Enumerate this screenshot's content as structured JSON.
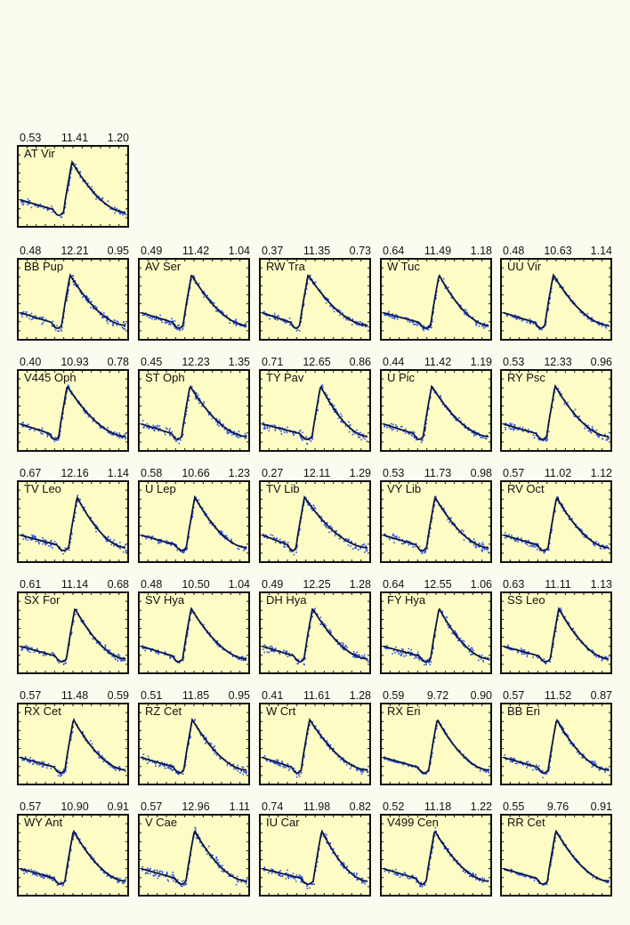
{
  "chart_data": [
    {
      "type": "scatter",
      "name": "AT Vir",
      "values": [
        0.53,
        11.41,
        1.2
      ],
      "labels": [
        "0.53",
        "11.41",
        "1.20"
      ]
    },
    {
      "type": "scatter",
      "name": "BB Pup",
      "values": [
        0.48,
        12.21,
        0.95
      ],
      "labels": [
        "0.48",
        "12.21",
        "0.95"
      ]
    },
    {
      "type": "scatter",
      "name": "AV Ser",
      "values": [
        0.49,
        11.42,
        1.04
      ],
      "labels": [
        "0.49",
        "11.42",
        "1.04"
      ]
    },
    {
      "type": "scatter",
      "name": "RW Tra",
      "values": [
        0.37,
        11.35,
        0.73
      ],
      "labels": [
        "0.37",
        "11.35",
        "0.73"
      ]
    },
    {
      "type": "scatter",
      "name": "W Tuc",
      "values": [
        0.64,
        11.49,
        1.18
      ],
      "labels": [
        "0.64",
        "11.49",
        "1.18"
      ]
    },
    {
      "type": "scatter",
      "name": "UU Vir",
      "values": [
        0.48,
        10.63,
        1.14
      ],
      "labels": [
        "0.48",
        "10.63",
        "1.14"
      ]
    },
    {
      "type": "scatter",
      "name": "V445 Oph",
      "values": [
        0.4,
        10.93,
        0.78
      ],
      "labels": [
        "0.40",
        "10.93",
        "0.78"
      ]
    },
    {
      "type": "scatter",
      "name": "ST Oph",
      "values": [
        0.45,
        12.23,
        1.35
      ],
      "labels": [
        "0.45",
        "12.23",
        "1.35"
      ]
    },
    {
      "type": "scatter",
      "name": "TY Pav",
      "values": [
        0.71,
        12.65,
        0.86
      ],
      "labels": [
        "0.71",
        "12.65",
        "0.86"
      ]
    },
    {
      "type": "scatter",
      "name": "U Pic",
      "values": [
        0.44,
        11.42,
        1.19
      ],
      "labels": [
        "0.44",
        "11.42",
        "1.19"
      ]
    },
    {
      "type": "scatter",
      "name": "RY Psc",
      "values": [
        0.53,
        12.33,
        0.96
      ],
      "labels": [
        "0.53",
        "12.33",
        "0.96"
      ]
    },
    {
      "type": "scatter",
      "name": "TV Leo",
      "values": [
        0.67,
        12.16,
        1.14
      ],
      "labels": [
        "0.67",
        "12.16",
        "1.14"
      ]
    },
    {
      "type": "scatter",
      "name": "U Lep",
      "values": [
        0.58,
        10.66,
        1.23
      ],
      "labels": [
        "0.58",
        "10.66",
        "1.23"
      ]
    },
    {
      "type": "scatter",
      "name": "TV Lib",
      "values": [
        0.27,
        12.11,
        1.29
      ],
      "labels": [
        "0.27",
        "12.11",
        "1.29"
      ]
    },
    {
      "type": "scatter",
      "name": "VY Lib",
      "values": [
        0.53,
        11.73,
        0.98
      ],
      "labels": [
        "0.53",
        "11.73",
        "0.98"
      ]
    },
    {
      "type": "scatter",
      "name": "RV Oct",
      "values": [
        0.57,
        11.02,
        1.12
      ],
      "labels": [
        "0.57",
        "11.02",
        "1.12"
      ]
    },
    {
      "type": "scatter",
      "name": "SX For",
      "values": [
        0.61,
        11.14,
        0.68
      ],
      "labels": [
        "0.61",
        "11.14",
        "0.68"
      ]
    },
    {
      "type": "scatter",
      "name": "SV Hya",
      "values": [
        0.48,
        10.5,
        1.04
      ],
      "labels": [
        "0.48",
        "10.50",
        "1.04"
      ]
    },
    {
      "type": "scatter",
      "name": "DH Hya",
      "values": [
        0.49,
        12.25,
        1.28
      ],
      "labels": [
        "0.49",
        "12.25",
        "1.28"
      ]
    },
    {
      "type": "scatter",
      "name": "FY Hya",
      "values": [
        0.64,
        12.55,
        1.06
      ],
      "labels": [
        "0.64",
        "12.55",
        "1.06"
      ]
    },
    {
      "type": "scatter",
      "name": "SS Leo",
      "values": [
        0.63,
        11.11,
        1.13
      ],
      "labels": [
        "0.63",
        "11.11",
        "1.13"
      ]
    },
    {
      "type": "scatter",
      "name": "RX Cet",
      "values": [
        0.57,
        11.48,
        0.59
      ],
      "labels": [
        "0.57",
        "11.48",
        "0.59"
      ]
    },
    {
      "type": "scatter",
      "name": "RZ Cet",
      "values": [
        0.51,
        11.85,
        0.95
      ],
      "labels": [
        "0.51",
        "11.85",
        "0.95"
      ]
    },
    {
      "type": "scatter",
      "name": "W Crt",
      "values": [
        0.41,
        11.61,
        1.28
      ],
      "labels": [
        "0.41",
        "11.61",
        "1.28"
      ]
    },
    {
      "type": "scatter",
      "name": "RX Eri",
      "values": [
        0.59,
        9.72,
        0.9
      ],
      "labels": [
        "0.59",
        "9.72",
        "0.90"
      ]
    },
    {
      "type": "scatter",
      "name": "BB Eri",
      "values": [
        0.57,
        11.52,
        0.87
      ],
      "labels": [
        "0.57",
        "11.52",
        "0.87"
      ]
    },
    {
      "type": "scatter",
      "name": "WY Ant",
      "values": [
        0.57,
        10.9,
        0.91
      ],
      "labels": [
        "0.57",
        "10.90",
        "0.91"
      ]
    },
    {
      "type": "scatter",
      "name": "V Cae",
      "values": [
        0.57,
        12.96,
        1.11
      ],
      "labels": [
        "0.57",
        "12.96",
        "1.11"
      ]
    },
    {
      "type": "scatter",
      "name": "IU Car",
      "values": [
        0.74,
        11.98,
        0.82
      ],
      "labels": [
        "0.74",
        "11.98",
        "0.82"
      ]
    },
    {
      "type": "scatter",
      "name": "V499 Cen",
      "values": [
        0.52,
        11.18,
        1.22
      ],
      "labels": [
        "0.52",
        "11.18",
        "1.22"
      ]
    },
    {
      "type": "scatter",
      "name": "RR Cet",
      "values": [
        0.55,
        9.76,
        0.91
      ],
      "labels": [
        "0.55",
        "9.76",
        "0.91"
      ]
    }
  ],
  "colors": {
    "background": "#fbfcef",
    "panel_fill": "#fdfcc4",
    "frame": "#111111",
    "points": "#2e52e6",
    "curve": "#0c1640"
  }
}
